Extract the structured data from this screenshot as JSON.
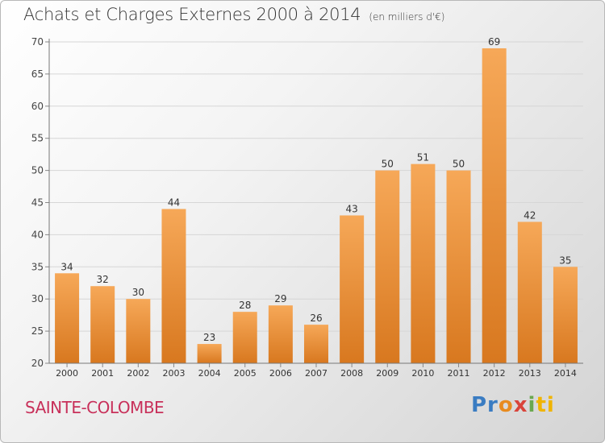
{
  "header": {
    "title": "Achats et Charges Externes 2000 à 2014",
    "unit": "(en milliers d'€)"
  },
  "commune": "SAINTE-COLOMBE",
  "logo": {
    "parts": [
      "Pr",
      "o",
      "x",
      "i",
      "ti"
    ]
  },
  "colors": {
    "bar_light": "#f6a858",
    "bar_dark": "#d8781f",
    "commune": "#c8305a"
  },
  "chart_data": {
    "type": "bar",
    "title": "Achats et Charges Externes 2000 à 2014",
    "subtitle": "(en milliers d'€)",
    "xlabel": "",
    "ylabel": "",
    "categories": [
      "2000",
      "2001",
      "2002",
      "2003",
      "2004",
      "2005",
      "2006",
      "2007",
      "2008",
      "2009",
      "2010",
      "2011",
      "2012",
      "2013",
      "2014"
    ],
    "values": [
      34,
      32,
      30,
      44,
      23,
      28,
      29,
      26,
      43,
      50,
      51,
      50,
      69,
      42,
      35
    ],
    "ylim": [
      20,
      70
    ],
    "yticks": [
      20,
      25,
      30,
      35,
      40,
      45,
      50,
      55,
      60,
      65,
      70
    ],
    "grid": true,
    "legend": "none"
  }
}
